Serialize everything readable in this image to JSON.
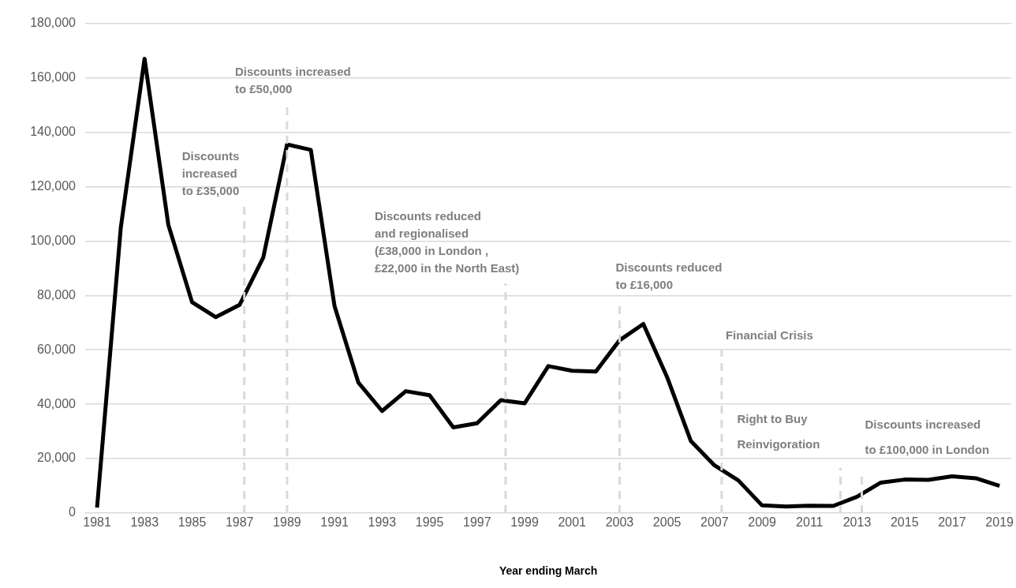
{
  "chart_data": {
    "type": "line",
    "xlabel": "Year ending March",
    "x": [
      1981,
      1982,
      1983,
      1984,
      1985,
      1986,
      1987,
      1988,
      1989,
      1990,
      1991,
      1992,
      1993,
      1994,
      1995,
      1996,
      1997,
      1998,
      1999,
      2000,
      2001,
      2002,
      2003,
      2004,
      2005,
      2006,
      2007,
      2008,
      2009,
      2010,
      2011,
      2012,
      2013,
      2014,
      2015,
      2016,
      2017,
      2018,
      2019
    ],
    "series": [
      {
        "color": "#000000",
        "values": [
          2000,
          105000,
          167000,
          106000,
          77500,
          72000,
          76500,
          94000,
          135500,
          133500,
          76000,
          48000,
          37500,
          44800,
          43300,
          31500,
          33000,
          41500,
          40300,
          54000,
          52300,
          52000,
          63500,
          69500,
          50000,
          26500,
          17500,
          12000,
          2800,
          2400,
          2700,
          2600,
          6000,
          11200,
          12300,
          12200,
          13500,
          12800,
          10000
        ]
      }
    ],
    "xlim": [
      1980.5,
      2019.5
    ],
    "xticks": [
      1981,
      1983,
      1985,
      1987,
      1989,
      1991,
      1993,
      1995,
      1997,
      1999,
      2001,
      2003,
      2005,
      2007,
      2009,
      2011,
      2013,
      2015,
      2017,
      2019
    ],
    "ylim": [
      0,
      180000
    ],
    "yticks": [
      0,
      {
        "value": 20000,
        "label": "20,000"
      },
      {
        "value": 40000,
        "label": "40,000"
      },
      {
        "value": 60000,
        "label": "60,000"
      },
      {
        "value": 80000,
        "label": "80,000"
      },
      {
        "value": 100000,
        "label": "100,000"
      },
      {
        "value": 120000,
        "label": "120,000"
      },
      {
        "value": 140000,
        "label": "140,000"
      },
      {
        "value": 160000,
        "label": "160,000"
      },
      {
        "value": 180000,
        "label": "180,000"
      }
    ],
    "grid": "y",
    "legend": false,
    "marker": "none",
    "line_style": "solid",
    "ref_lines": [
      {
        "axis": "x",
        "value": 1987.2,
        "label": "Discounts\nincreased\nto £35,000",
        "color": "#d9d9d9",
        "line_style": "dashed"
      },
      {
        "axis": "x",
        "value": 1989,
        "label": "Discounts increased\nto £50,000",
        "color": "#d9d9d9",
        "line_style": "dashed"
      },
      {
        "axis": "x",
        "value": 1998.2,
        "label": "Discounts reduced\nand regionalised\n(£38,000 in London ,\n£22,000 in the North East)",
        "color": "#d9d9d9",
        "line_style": "dashed"
      },
      {
        "axis": "x",
        "value": 2003,
        "label": "Discounts reduced\nto £16,000",
        "color": "#d9d9d9",
        "line_style": "dashed"
      },
      {
        "axis": "x",
        "value": 2007.3,
        "label": "Financial Crisis",
        "color": "#d9d9d9",
        "line_style": "dashed"
      },
      {
        "axis": "x",
        "value": 2012.3,
        "label": "Right to Buy\nReinvigoration",
        "color": "#d9d9d9",
        "line_style": "dashed"
      },
      {
        "axis": "x",
        "value": 2013.2,
        "label": "Discounts increased\nto £100,000 in London",
        "color": "#d9d9d9",
        "line_style": "dashed"
      }
    ]
  }
}
